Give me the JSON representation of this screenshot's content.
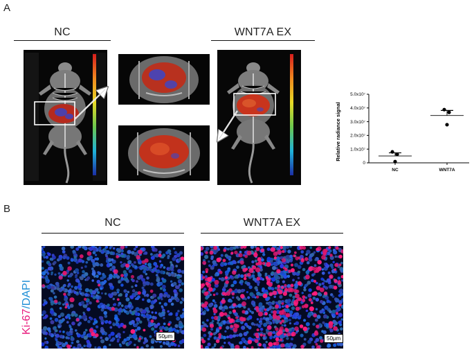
{
  "panel_a": {
    "letter": "A",
    "left_title": "NC",
    "right_title": "WNT7A EX"
  },
  "panel_b": {
    "letter": "B",
    "left_title": "NC",
    "right_title": "WNT7A EX",
    "stain_label_ki67": "Ki-67",
    "stain_label_sep": "/",
    "stain_label_dapi": "DAPI",
    "scalebar_left": "50μm",
    "scalebar_right": "50μm",
    "colors": {
      "ki67": "#e8197c",
      "dapi": "#1f8fd6"
    }
  },
  "chart_data": {
    "type": "scatter",
    "ylabel": "Relative radiance signal",
    "xlabel": "",
    "categories": [
      "NC",
      "WNT7A"
    ],
    "yticks": [
      "0",
      "1.0x10⁷",
      "2.0x10⁷",
      "3.0x10⁷",
      "4.0x10⁷",
      "5.0x10⁷"
    ],
    "ylim": [
      0,
      50000000
    ],
    "series": [
      {
        "category": "NC",
        "points": [
          8000000,
          6200000,
          900000
        ],
        "mean": 5000000,
        "sd_upper": 7300000
      },
      {
        "category": "WNT7A",
        "points": [
          38800000,
          36800000,
          27800000
        ],
        "mean": 34500000,
        "sd_upper": 38200000
      }
    ]
  }
}
